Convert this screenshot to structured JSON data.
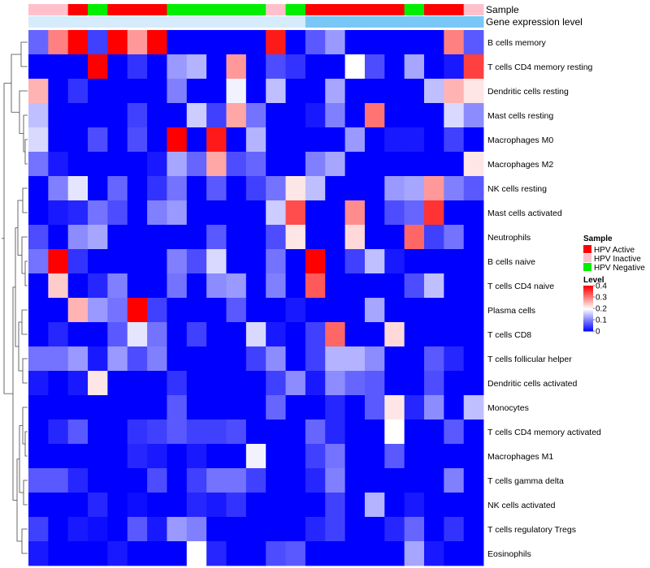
{
  "chart_data": {
    "type": "heatmap",
    "title": "",
    "annotation_rows": [
      "Sample",
      "Gene expression level"
    ],
    "rows": [
      "B cells memory",
      "T cells CD4 memory resting",
      "Dendritic cells resting",
      "Mast cells resting",
      "Macrophages M0",
      "Macrophages M2",
      "NK cells resting",
      "Mast cells activated",
      "Neutrophils",
      "B cells naive",
      "T cells CD4 naive",
      "Plasma cells",
      "T cells CD8",
      "T cells follicular helper",
      "Dendritic cells activated",
      "Monocytes",
      "T cells CD4 memory activated",
      "Macrophages M1",
      "T cells gamma delta",
      "NK cells activated",
      "T cells regulatory  Tregs",
      "Eosinophils"
    ],
    "column_sample": [
      "HPV Inactive",
      "HPV Inactive",
      "HPV Active",
      "HPV Negative",
      "HPV Active",
      "HPV Active",
      "HPV Active",
      "HPV Negative",
      "HPV Negative",
      "HPV Negative",
      "HPV Negative",
      "HPV Negative",
      "HPV Inactive",
      "HPV Negative",
      "HPV Active",
      "HPV Active",
      "HPV Active",
      "HPV Active",
      "HPV Active",
      "HPV Negative",
      "HPV Active",
      "HPV Active",
      "HPV Inactive"
    ],
    "column_expression": [
      0.05,
      0.05,
      0.05,
      0.05,
      0.05,
      0.05,
      0.05,
      0.05,
      0.05,
      0.05,
      0.05,
      0.05,
      0.05,
      0.05,
      0.9,
      0.9,
      0.9,
      0.9,
      0.9,
      0.9,
      0.9,
      0.9,
      0.9
    ],
    "values": [
      [
        0.08,
        0.3,
        0.4,
        0.05,
        0.4,
        0.28,
        0.4,
        0.0,
        0.0,
        0.0,
        0.0,
        0.0,
        0.38,
        0.0,
        0.07,
        0.12,
        0.0,
        0.0,
        0.0,
        0.0,
        0.0,
        0.3,
        0.07
      ],
      [
        0.0,
        0.0,
        0.0,
        0.4,
        0.0,
        0.04,
        0.0,
        0.12,
        0.14,
        0.0,
        0.28,
        0.0,
        0.06,
        0.04,
        0.0,
        0.0,
        0.2,
        0.06,
        0.0,
        0.13,
        0.0,
        0.02,
        0.35
      ],
      [
        0.26,
        0.0,
        0.04,
        0.0,
        0.0,
        0.0,
        0.0,
        0.1,
        0.0,
        0.0,
        0.19,
        0.0,
        0.15,
        0.0,
        0.0,
        0.13,
        0.0,
        0.0,
        0.0,
        0.0,
        0.15,
        0.26,
        0.22
      ],
      [
        0.15,
        0.0,
        0.0,
        0.0,
        0.0,
        0.05,
        0.0,
        0.0,
        0.16,
        0.05,
        0.27,
        0.09,
        0.0,
        0.0,
        0.02,
        0.1,
        0.0,
        0.31,
        0.0,
        0.0,
        0.0,
        0.17,
        0.11
      ],
      [
        0.17,
        0.0,
        0.0,
        0.06,
        0.0,
        0.06,
        0.0,
        0.4,
        0.0,
        0.38,
        0.0,
        0.14,
        0.0,
        0.0,
        0.0,
        0.0,
        0.12,
        0.0,
        0.02,
        0.02,
        0.0,
        0.05,
        0.0
      ],
      [
        0.09,
        0.02,
        0.0,
        0.0,
        0.0,
        0.0,
        0.02,
        0.13,
        0.08,
        0.27,
        0.06,
        0.08,
        0.0,
        0.0,
        0.1,
        0.13,
        0.0,
        0.0,
        0.0,
        0.0,
        0.0,
        0.0,
        0.22
      ],
      [
        0.0,
        0.1,
        0.18,
        0.0,
        0.08,
        0.0,
        0.04,
        0.09,
        0.0,
        0.07,
        0.0,
        0.05,
        0.09,
        0.22,
        0.15,
        0.0,
        0.0,
        0.0,
        0.12,
        0.13,
        0.28,
        0.1,
        0.07
      ],
      [
        0.0,
        0.02,
        0.03,
        0.09,
        0.06,
        0.0,
        0.1,
        0.12,
        0.0,
        0.0,
        0.0,
        0.0,
        0.16,
        0.34,
        0.0,
        0.0,
        0.29,
        0.0,
        0.06,
        0.08,
        0.36,
        0.0,
        0.0
      ],
      [
        0.06,
        0.0,
        0.11,
        0.13,
        0.0,
        0.0,
        0.0,
        0.0,
        0.0,
        0.07,
        0.0,
        0.0,
        0.06,
        0.22,
        0.0,
        0.0,
        0.23,
        0.0,
        0.0,
        0.32,
        0.05,
        0.09,
        0.0
      ],
      [
        0.09,
        0.4,
        0.04,
        0.0,
        0.0,
        0.0,
        0.0,
        0.1,
        0.06,
        0.17,
        0.0,
        0.0,
        0.09,
        0.0,
        0.4,
        0.0,
        0.05,
        0.15,
        0.02,
        0.0,
        0.0,
        0.0,
        0.0
      ],
      [
        0.0,
        0.24,
        0.0,
        0.03,
        0.1,
        0.0,
        0.0,
        0.09,
        0.0,
        0.11,
        0.12,
        0.0,
        0.1,
        0.0,
        0.33,
        0.0,
        0.0,
        0.0,
        0.0,
        0.06,
        0.15,
        0.0,
        0.0
      ],
      [
        0.0,
        0.0,
        0.26,
        0.12,
        0.09,
        0.4,
        0.05,
        0.0,
        0.0,
        0.0,
        0.07,
        0.0,
        0.0,
        0.02,
        0.0,
        0.0,
        0.0,
        0.13,
        0.0,
        0.0,
        0.0,
        0.0,
        0.0
      ],
      [
        0.0,
        0.03,
        0.0,
        0.0,
        0.07,
        0.18,
        0.09,
        0.0,
        0.05,
        0.0,
        0.0,
        0.17,
        0.02,
        0.0,
        0.05,
        0.32,
        0.0,
        0.0,
        0.23,
        0.0,
        0.0,
        0.0,
        0.0
      ],
      [
        0.09,
        0.09,
        0.12,
        0.02,
        0.12,
        0.06,
        0.1,
        0.0,
        0.0,
        0.0,
        0.0,
        0.05,
        0.11,
        0.0,
        0.05,
        0.14,
        0.14,
        0.11,
        0.0,
        0.0,
        0.07,
        0.03,
        0.0
      ],
      [
        0.02,
        0.0,
        0.02,
        0.22,
        0.0,
        0.0,
        0.0,
        0.04,
        0.0,
        0.0,
        0.0,
        0.0,
        0.05,
        0.11,
        0.02,
        0.11,
        0.08,
        0.07,
        0.0,
        0.0,
        0.06,
        0.0,
        0.0
      ],
      [
        0.0,
        0.0,
        0.0,
        0.0,
        0.0,
        0.0,
        0.0,
        0.07,
        0.0,
        0.0,
        0.0,
        0.0,
        0.08,
        0.0,
        0.0,
        0.03,
        0.0,
        0.07,
        0.22,
        0.03,
        0.11,
        0.0,
        0.15
      ],
      [
        0.0,
        0.03,
        0.07,
        0.0,
        0.0,
        0.04,
        0.05,
        0.07,
        0.05,
        0.05,
        0.06,
        0.0,
        0.0,
        0.0,
        0.08,
        0.03,
        0.0,
        0.0,
        0.2,
        0.0,
        0.0,
        0.07,
        0.0
      ],
      [
        0.0,
        0.0,
        0.0,
        0.0,
        0.0,
        0.03,
        0.02,
        0.0,
        0.02,
        0.0,
        0.0,
        0.19,
        0.0,
        0.0,
        0.05,
        0.09,
        0.0,
        0.0,
        0.07,
        0.0,
        0.0,
        0.0,
        0.0
      ],
      [
        0.07,
        0.07,
        0.03,
        0.0,
        0.0,
        0.0,
        0.06,
        0.0,
        0.05,
        0.09,
        0.09,
        0.05,
        0.0,
        0.0,
        0.03,
        0.1,
        0.0,
        0.0,
        0.0,
        0.0,
        0.0,
        0.1,
        0.0
      ],
      [
        0.0,
        0.0,
        0.0,
        0.03,
        0.0,
        0.01,
        0.0,
        0.0,
        0.03,
        0.02,
        0.04,
        0.0,
        0.0,
        0.0,
        0.0,
        0.05,
        0.0,
        0.14,
        0.0,
        0.02,
        0.0,
        0.0,
        0.0
      ],
      [
        0.05,
        0.0,
        0.02,
        0.01,
        0.0,
        0.07,
        0.02,
        0.12,
        0.1,
        0.0,
        0.0,
        0.0,
        0.0,
        0.0,
        0.03,
        0.05,
        0.0,
        0.0,
        0.03,
        0.08,
        0.0,
        0.04,
        0.0
      ],
      [
        0.02,
        0.0,
        0.0,
        0.0,
        0.02,
        0.0,
        0.0,
        0.0,
        0.2,
        0.03,
        0.0,
        0.0,
        0.06,
        0.07,
        0.0,
        0.0,
        0.0,
        0.0,
        0.0,
        0.13,
        0.02,
        0.0,
        0.0
      ]
    ],
    "legend": {
      "sample_title": "Sample",
      "sample_entries": [
        {
          "label": "HPV Active",
          "color": "#ff0000"
        },
        {
          "label": "HPV Inactive",
          "color": "#ffc0cb"
        },
        {
          "label": "HPV Negative",
          "color": "#00ee00"
        }
      ],
      "level_title": "Level",
      "level_ticks": [
        "0.4",
        "0.3",
        "0.2",
        "0.1",
        "0"
      ],
      "level_tick_values": [
        0.4,
        0.3,
        0.2,
        0.1,
        0.0
      ],
      "level_range": [
        0,
        0.4
      ],
      "placement": "right"
    },
    "colors": {
      "low": "#0000ff",
      "mid": "#ffffff",
      "high": "#ff0000",
      "expression_low": "#dbeefc",
      "expression_high": "#6ec3f5"
    },
    "grid": false
  }
}
